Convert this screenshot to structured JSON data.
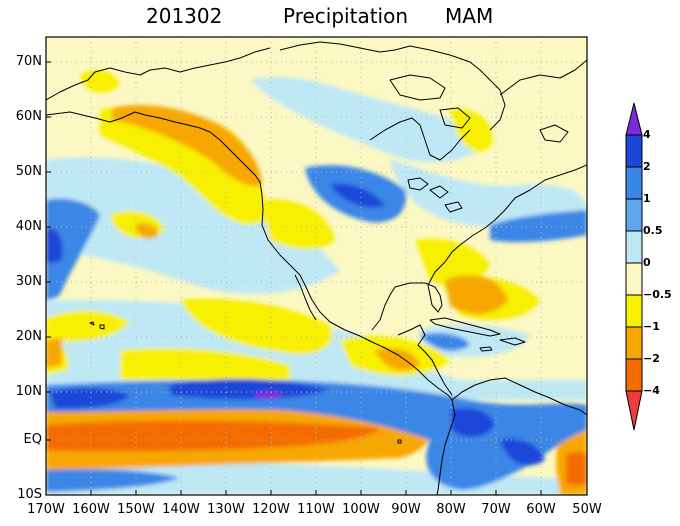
{
  "title": {
    "date": "201302",
    "variable": "Precipitation",
    "season": "MAM"
  },
  "lat_labels": [
    "70N",
    "60N",
    "50N",
    "40N",
    "30N",
    "20N",
    "10N",
    "EQ",
    "10S"
  ],
  "lon_labels": [
    "170W",
    "160W",
    "150W",
    "140W",
    "130W",
    "120W",
    "110W",
    "100W",
    "90W",
    "80W",
    "70W",
    "60W",
    "50W"
  ],
  "colorbar": {
    "labels": [
      "4",
      "2",
      "1",
      "0.5",
      "0",
      "−0.5",
      "−1",
      "−2",
      "−4"
    ],
    "colors": [
      "#7a2bdc",
      "#1b46d8",
      "#3a86e6",
      "#5fa6ee",
      "#bfe8f5",
      "#fbf8c3",
      "#f7f000",
      "#f7a700",
      "#f46c00",
      "#ee3b3b"
    ]
  }
}
